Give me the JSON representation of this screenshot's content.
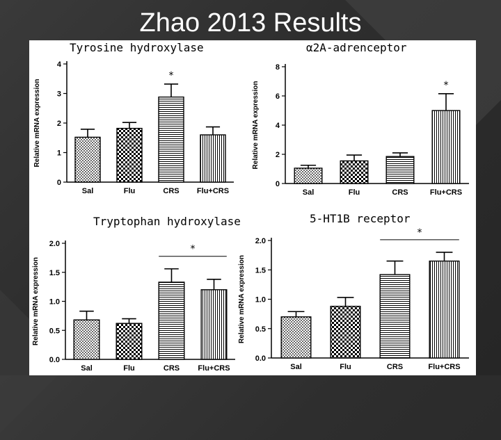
{
  "slide": {
    "title": "Zhao 2013 Results"
  },
  "chart_data": [
    {
      "type": "bar",
      "title": "Tyrosine hydroxylase",
      "ylabel": "Relative mRNA expression",
      "categories": [
        "Sal",
        "Flu",
        "CRS",
        "Flu+CRS"
      ],
      "values": [
        1.52,
        1.82,
        2.88,
        1.6
      ],
      "errors": [
        0.27,
        0.2,
        0.44,
        0.27
      ],
      "ylim": [
        0,
        4
      ],
      "yticks": [
        "0",
        "1",
        "2",
        "3",
        "4"
      ],
      "significance": [
        {
          "label": "*",
          "category": "CRS"
        }
      ]
    },
    {
      "type": "bar",
      "title": "α2A-adrenceptor",
      "ylabel": "Relative mRNA expression",
      "categories": [
        "Sal",
        "Flu",
        "CRS",
        "Flu+CRS"
      ],
      "values": [
        1.05,
        1.55,
        1.85,
        5.0
      ],
      "errors": [
        0.2,
        0.4,
        0.25,
        1.15
      ],
      "ylim": [
        0,
        8
      ],
      "yticks": [
        "0",
        "2",
        "4",
        "6",
        "8"
      ],
      "significance": [
        {
          "label": "*",
          "category": "Flu+CRS"
        }
      ]
    },
    {
      "type": "bar",
      "title": "Tryptophan hydroxylase",
      "ylabel": "Relative mRNA expression",
      "categories": [
        "Sal",
        "Flu",
        "CRS",
        "Flu+CRS"
      ],
      "values": [
        0.68,
        0.62,
        1.33,
        1.2
      ],
      "errors": [
        0.15,
        0.08,
        0.23,
        0.18
      ],
      "ylim": [
        0,
        2.0
      ],
      "yticks": [
        "0.0",
        "0.5",
        "1.0",
        "1.5",
        "2.0"
      ],
      "significance": [
        {
          "label": "*",
          "from": "CRS",
          "to": "Flu+CRS"
        }
      ]
    },
    {
      "type": "bar",
      "title": "5-HT1B receptor",
      "ylabel": "Relative mRNA expression",
      "categories": [
        "Sal",
        "Flu",
        "CRS",
        "Flu+CRS"
      ],
      "values": [
        0.7,
        0.88,
        1.42,
        1.65
      ],
      "errors": [
        0.09,
        0.15,
        0.23,
        0.15
      ],
      "ylim": [
        0,
        2.0
      ],
      "yticks": [
        "0.0",
        "0.5",
        "1.0",
        "1.5",
        "2.0"
      ],
      "significance": [
        {
          "label": "*",
          "from": "CRS",
          "to": "Flu+CRS"
        }
      ]
    }
  ]
}
